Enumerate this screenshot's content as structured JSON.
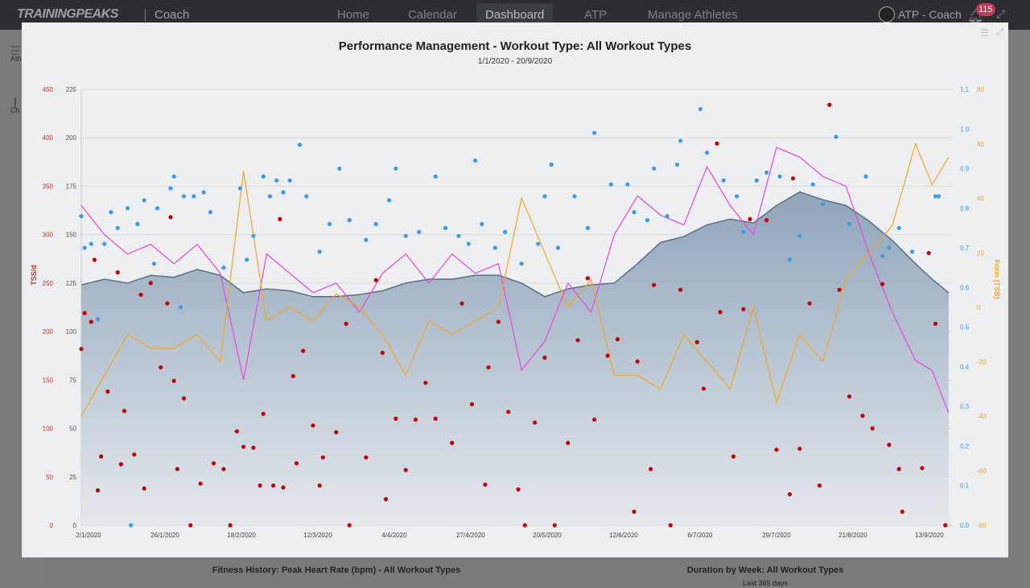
{
  "nav": {
    "logo": "TRAININGPEAKS",
    "product": "Coach",
    "items": [
      "Home",
      "Calendar",
      "Dashboard",
      "ATP",
      "Manage Athletes"
    ],
    "active": "Dashboard",
    "user": "ATP - Coach",
    "notifications": "115"
  },
  "sidebar": {
    "items": [
      "Ath Lib",
      "Ch Lib"
    ]
  },
  "background_widgets": {
    "left_title": "Fitness History: Peak Heart Rate (bpm) - All Workout Types",
    "right_title": "Duration by Week: All Workout Types",
    "right_subtitle": "Last 365 days"
  },
  "colors": {
    "tss": "#c40000",
    "if": "#3d9be9",
    "atl": "#ee44dd",
    "tsb": "#f5a623",
    "ctl_stroke": "#5a6f83",
    "ctl_fill": "#9fb2c5"
  },
  "chart_data": {
    "type": "line",
    "title": "Performance Management - Workout Type: All Workout Types",
    "subtitle": "1/1/2020 - 20/9/2020",
    "xlim": [
      "2020-01-01",
      "2020-09-20"
    ],
    "x_ticks": [
      "2/1/2020",
      "26/1/2020",
      "18/2/2020",
      "12/3/2020",
      "4/4/2020",
      "27/4/2020",
      "20/5/2020",
      "12/6/2020",
      "6/7/2020",
      "29/7/2020",
      "21/8/2020",
      "13/9/2020"
    ],
    "axes": {
      "tss": {
        "label": "TSS/d",
        "range": [
          0,
          450
        ],
        "ticks": [
          "0",
          "50",
          "100",
          "150",
          "200",
          "250",
          "300",
          "350",
          "400",
          "450"
        ]
      },
      "fitness": {
        "label": "",
        "range": [
          0,
          225
        ],
        "ticks": [
          "0",
          "25",
          "50",
          "75",
          "100",
          "125",
          "150",
          "175",
          "200",
          "225"
        ]
      },
      "if": {
        "label": "",
        "range": [
          0,
          1.1
        ],
        "ticks": [
          "0.0",
          "0.1",
          "0.2",
          "0.3",
          "0.4",
          "0.5",
          "0.6",
          "0.7",
          "0.8",
          "0.9",
          "1.0",
          "1.1"
        ]
      },
      "tsb": {
        "label": "Form (TSB)",
        "range": [
          -80,
          80
        ],
        "ticks": [
          "-80",
          "-60",
          "-40",
          "-20",
          "0",
          "20",
          "40",
          "60",
          "80"
        ]
      }
    },
    "grid": true,
    "dates_weekly": [
      "2020-01-01",
      "2020-01-08",
      "2020-01-15",
      "2020-01-22",
      "2020-01-29",
      "2020-02-05",
      "2020-02-12",
      "2020-02-19",
      "2020-02-26",
      "2020-03-04",
      "2020-03-11",
      "2020-03-18",
      "2020-03-25",
      "2020-04-01",
      "2020-04-08",
      "2020-04-15",
      "2020-04-22",
      "2020-04-29",
      "2020-05-06",
      "2020-05-13",
      "2020-05-20",
      "2020-05-27",
      "2020-06-03",
      "2020-06-10",
      "2020-06-17",
      "2020-06-24",
      "2020-07-01",
      "2020-07-08",
      "2020-07-15",
      "2020-07-22",
      "2020-07-29",
      "2020-08-05",
      "2020-08-12",
      "2020-08-19",
      "2020-08-26",
      "2020-09-02",
      "2020-09-09",
      "2020-09-14",
      "2020-09-19"
    ],
    "fitness_ctl": [
      124,
      127,
      125,
      129,
      128,
      132,
      129,
      120,
      122,
      121,
      118,
      118,
      119,
      121,
      125,
      127,
      127,
      129,
      129,
      125,
      118,
      122,
      124,
      125,
      135,
      146,
      149,
      155,
      158,
      156,
      165,
      172,
      168,
      165,
      157,
      147,
      135,
      127,
      120
    ],
    "fatigue_atl": [
      165,
      150,
      140,
      145,
      135,
      145,
      130,
      75,
      140,
      130,
      120,
      125,
      110,
      130,
      140,
      125,
      140,
      130,
      135,
      80,
      95,
      125,
      110,
      150,
      170,
      160,
      155,
      185,
      165,
      150,
      195,
      190,
      180,
      175,
      140,
      110,
      85,
      80,
      58
    ],
    "form_tsb": [
      -40,
      -25,
      -10,
      -15,
      -15,
      -10,
      -20,
      50,
      -5,
      0,
      -5,
      5,
      0,
      -10,
      -25,
      -5,
      -10,
      -5,
      0,
      40,
      20,
      0,
      10,
      -25,
      -25,
      -30,
      -10,
      -20,
      -30,
      0,
      -35,
      -10,
      -20,
      10,
      20,
      30,
      60,
      45,
      55
    ],
    "tss_points": [
      [
        "2020-01-01",
        182
      ],
      [
        "2020-01-02",
        219
      ],
      [
        "2020-01-04",
        210
      ],
      [
        "2020-01-05",
        274
      ],
      [
        "2020-01-06",
        36
      ],
      [
        "2020-01-07",
        71
      ],
      [
        "2020-01-09",
        138
      ],
      [
        "2020-01-12",
        261
      ],
      [
        "2020-01-13",
        63
      ],
      [
        "2020-01-14",
        118
      ],
      [
        "2020-01-17",
        73
      ],
      [
        "2020-01-19",
        238
      ],
      [
        "2020-01-20",
        38
      ],
      [
        "2020-01-22",
        250
      ],
      [
        "2020-01-25",
        163
      ],
      [
        "2020-01-27",
        229
      ],
      [
        "2020-01-28",
        318
      ],
      [
        "2020-01-29",
        149
      ],
      [
        "2020-01-30",
        58
      ],
      [
        "2020-02-01",
        131
      ],
      [
        "2020-02-03",
        0
      ],
      [
        "2020-02-06",
        43
      ],
      [
        "2020-02-10",
        64
      ],
      [
        "2020-02-13",
        58
      ],
      [
        "2020-02-15",
        0
      ],
      [
        "2020-02-17",
        97
      ],
      [
        "2020-02-19",
        81
      ],
      [
        "2020-02-22",
        80
      ],
      [
        "2020-02-24",
        41
      ],
      [
        "2020-02-25",
        115
      ],
      [
        "2020-02-28",
        41
      ],
      [
        "2020-03-01",
        316
      ],
      [
        "2020-03-02",
        39
      ],
      [
        "2020-03-05",
        154
      ],
      [
        "2020-03-06",
        64
      ],
      [
        "2020-03-08",
        180
      ],
      [
        "2020-03-11",
        103
      ],
      [
        "2020-03-13",
        41
      ],
      [
        "2020-03-14",
        70
      ],
      [
        "2020-03-18",
        96
      ],
      [
        "2020-03-21",
        208
      ],
      [
        "2020-03-22",
        0
      ],
      [
        "2020-03-27",
        70
      ],
      [
        "2020-03-30",
        253
      ],
      [
        "2020-04-01",
        178
      ],
      [
        "2020-04-02",
        27
      ],
      [
        "2020-04-05",
        110
      ],
      [
        "2020-04-08",
        57
      ],
      [
        "2020-04-11",
        109
      ],
      [
        "2020-04-14",
        147
      ],
      [
        "2020-04-17",
        110
      ],
      [
        "2020-04-22",
        85
      ],
      [
        "2020-04-25",
        229
      ],
      [
        "2020-04-28",
        125
      ],
      [
        "2020-05-02",
        42
      ],
      [
        "2020-05-03",
        163
      ],
      [
        "2020-05-06",
        210
      ],
      [
        "2020-05-09",
        117
      ],
      [
        "2020-05-12",
        37
      ],
      [
        "2020-05-14",
        0
      ],
      [
        "2020-05-17",
        106
      ],
      [
        "2020-05-20",
        173
      ],
      [
        "2020-05-23",
        0
      ],
      [
        "2020-05-27",
        85
      ],
      [
        "2020-05-30",
        191
      ],
      [
        "2020-06-02",
        255
      ],
      [
        "2020-06-04",
        109
      ],
      [
        "2020-06-08",
        175
      ],
      [
        "2020-06-11",
        192
      ],
      [
        "2020-06-16",
        14
      ],
      [
        "2020-06-17",
        169
      ],
      [
        "2020-06-21",
        58
      ],
      [
        "2020-06-22",
        248
      ],
      [
        "2020-06-27",
        0
      ],
      [
        "2020-06-30",
        243
      ],
      [
        "2020-07-05",
        189
      ],
      [
        "2020-07-07",
        141
      ],
      [
        "2020-07-11",
        394
      ],
      [
        "2020-07-12",
        220
      ],
      [
        "2020-07-16",
        71
      ],
      [
        "2020-07-19",
        223
      ],
      [
        "2020-07-21",
        316
      ],
      [
        "2020-07-26",
        315
      ],
      [
        "2020-07-29",
        78
      ],
      [
        "2020-08-02",
        32
      ],
      [
        "2020-08-03",
        358
      ],
      [
        "2020-08-05",
        79
      ],
      [
        "2020-08-08",
        229
      ],
      [
        "2020-08-11",
        41
      ],
      [
        "2020-08-14",
        434
      ],
      [
        "2020-08-17",
        243
      ],
      [
        "2020-08-20",
        133
      ],
      [
        "2020-08-24",
        113
      ],
      [
        "2020-08-27",
        100
      ],
      [
        "2020-08-30",
        249
      ],
      [
        "2020-09-01",
        83
      ],
      [
        "2020-09-04",
        58
      ],
      [
        "2020-09-05",
        14
      ],
      [
        "2020-09-11",
        59
      ],
      [
        "2020-09-13",
        281
      ],
      [
        "2020-09-15",
        208
      ],
      [
        "2020-09-18",
        0
      ]
    ],
    "if_points": [
      [
        "2020-01-01",
        0.78
      ],
      [
        "2020-01-02",
        0.7
      ],
      [
        "2020-01-04",
        0.71
      ],
      [
        "2020-01-06",
        0.52
      ],
      [
        "2020-01-08",
        0.71
      ],
      [
        "2020-01-10",
        0.79
      ],
      [
        "2020-01-12",
        0.75
      ],
      [
        "2020-01-15",
        0.8
      ],
      [
        "2020-01-16",
        0.0
      ],
      [
        "2020-01-18",
        0.76
      ],
      [
        "2020-01-20",
        0.82
      ],
      [
        "2020-01-23",
        0.66
      ],
      [
        "2020-01-24",
        0.8
      ],
      [
        "2020-01-28",
        0.85
      ],
      [
        "2020-01-29",
        0.88
      ],
      [
        "2020-01-31",
        0.55
      ],
      [
        "2020-02-01",
        0.83
      ],
      [
        "2020-02-04",
        0.83
      ],
      [
        "2020-02-07",
        0.84
      ],
      [
        "2020-02-09",
        0.79
      ],
      [
        "2020-02-13",
        0.65
      ],
      [
        "2020-02-18",
        0.85
      ],
      [
        "2020-02-20",
        0.67
      ],
      [
        "2020-02-22",
        0.73
      ],
      [
        "2020-02-25",
        0.88
      ],
      [
        "2020-02-27",
        0.83
      ],
      [
        "2020-02-29",
        0.87
      ],
      [
        "2020-03-02",
        0.84
      ],
      [
        "2020-03-04",
        0.87
      ],
      [
        "2020-03-07",
        0.96
      ],
      [
        "2020-03-09",
        0.83
      ],
      [
        "2020-03-13",
        0.69
      ],
      [
        "2020-03-16",
        0.76
      ],
      [
        "2020-03-19",
        0.9
      ],
      [
        "2020-03-22",
        0.77
      ],
      [
        "2020-03-27",
        0.72
      ],
      [
        "2020-03-30",
        0.76
      ],
      [
        "2020-04-03",
        0.82
      ],
      [
        "2020-04-05",
        0.9
      ],
      [
        "2020-04-08",
        0.73
      ],
      [
        "2020-04-12",
        0.74
      ],
      [
        "2020-04-17",
        0.88
      ],
      [
        "2020-04-20",
        0.75
      ],
      [
        "2020-04-24",
        0.73
      ],
      [
        "2020-04-27",
        0.71
      ],
      [
        "2020-04-29",
        0.92
      ],
      [
        "2020-05-01",
        0.76
      ],
      [
        "2020-05-05",
        0.7
      ],
      [
        "2020-05-08",
        0.74
      ],
      [
        "2020-05-13",
        0.66
      ],
      [
        "2020-05-18",
        0.71
      ],
      [
        "2020-05-20",
        0.83
      ],
      [
        "2020-05-22",
        0.91
      ],
      [
        "2020-05-24",
        0.7
      ],
      [
        "2020-05-29",
        0.83
      ],
      [
        "2020-06-02",
        0.75
      ],
      [
        "2020-06-04",
        0.99
      ],
      [
        "2020-06-09",
        0.86
      ],
      [
        "2020-06-14",
        0.86
      ],
      [
        "2020-06-16",
        0.79
      ],
      [
        "2020-06-20",
        0.77
      ],
      [
        "2020-06-22",
        0.9
      ],
      [
        "2020-06-26",
        0.78
      ],
      [
        "2020-06-29",
        0.91
      ],
      [
        "2020-06-30",
        0.97
      ],
      [
        "2020-07-06",
        1.05
      ],
      [
        "2020-07-08",
        0.94
      ],
      [
        "2020-07-13",
        0.87
      ],
      [
        "2020-07-17",
        0.83
      ],
      [
        "2020-07-19",
        0.74
      ],
      [
        "2020-07-23",
        0.87
      ],
      [
        "2020-07-26",
        0.89
      ],
      [
        "2020-07-30",
        0.88
      ],
      [
        "2020-08-02",
        0.67
      ],
      [
        "2020-08-05",
        0.73
      ],
      [
        "2020-08-09",
        0.86
      ],
      [
        "2020-08-12",
        0.81
      ],
      [
        "2020-08-16",
        0.98
      ],
      [
        "2020-08-20",
        0.76
      ],
      [
        "2020-08-25",
        0.88
      ],
      [
        "2020-08-30",
        0.68
      ],
      [
        "2020-09-01",
        0.7
      ],
      [
        "2020-09-04",
        0.75
      ],
      [
        "2020-09-08",
        0.69
      ],
      [
        "2020-09-15",
        0.83
      ],
      [
        "2020-09-16",
        0.83
      ]
    ]
  }
}
